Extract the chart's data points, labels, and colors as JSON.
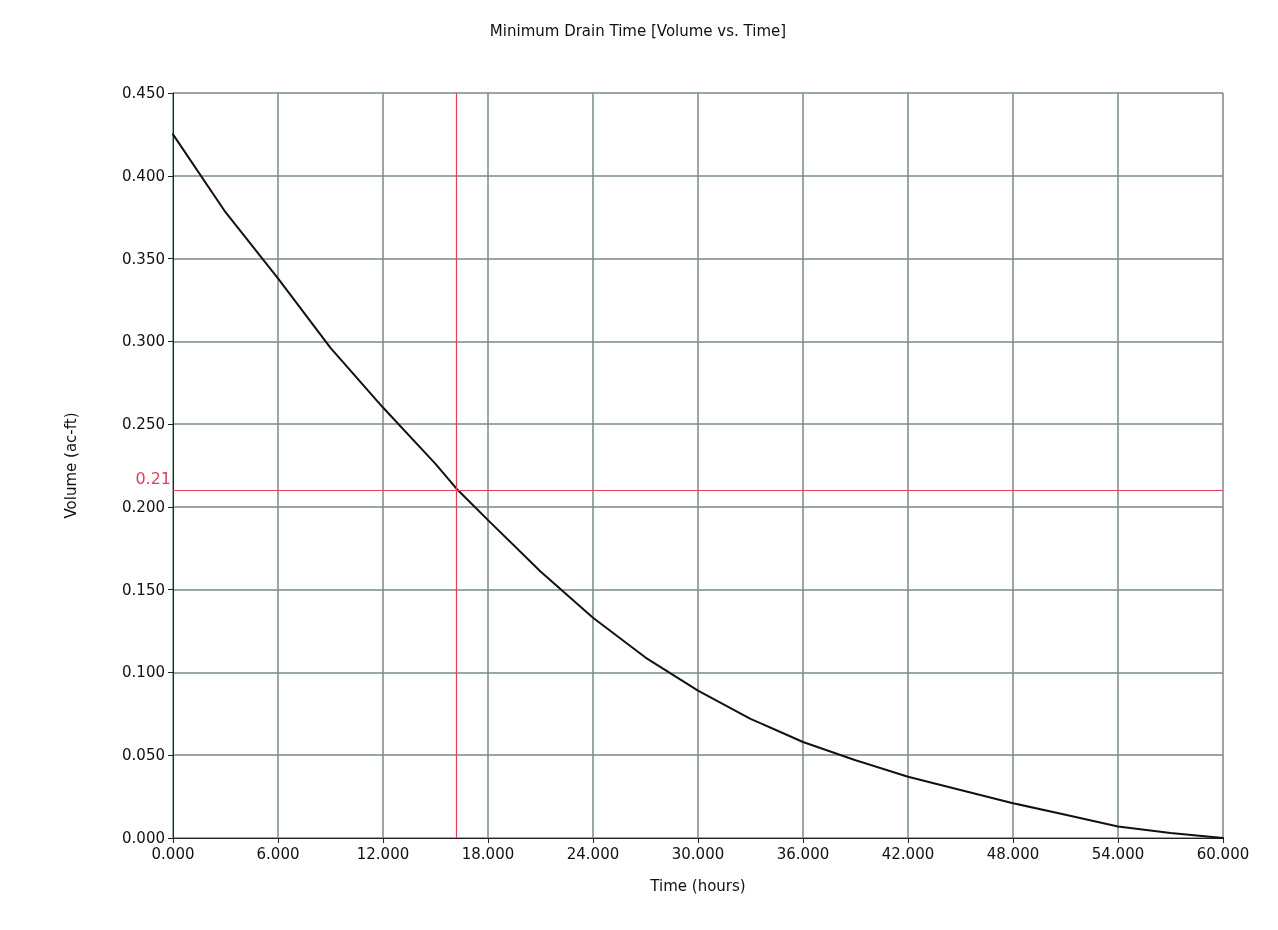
{
  "chart_data": {
    "type": "line",
    "title": "Minimum Drain Time [Volume vs. Time]",
    "xlabel": "Time (hours)",
    "ylabel": "Volume (ac-ft)",
    "x": [
      0,
      3,
      6,
      9,
      12,
      15,
      16.2,
      18,
      21,
      24,
      27,
      30,
      33,
      36,
      39,
      42,
      45,
      48,
      51,
      54,
      57,
      60
    ],
    "series": [
      {
        "color": "#111111",
        "values": [
          0.425,
          0.378,
          0.338,
          0.296,
          0.26,
          0.226,
          0.211,
          0.192,
          0.161,
          0.133,
          0.109,
          0.089,
          0.072,
          0.058,
          0.047,
          0.037,
          0.029,
          0.021,
          0.014,
          0.007,
          0.003,
          0.0
        ]
      }
    ],
    "xlim": [
      0,
      60
    ],
    "ylim": [
      0,
      0.45
    ],
    "xticks": [
      {
        "value": 0,
        "label": "0.000"
      },
      {
        "value": 6,
        "label": "6.000"
      },
      {
        "value": 12,
        "label": "12.000"
      },
      {
        "value": 18,
        "label": "18.000"
      },
      {
        "value": 24,
        "label": "24.000"
      },
      {
        "value": 30,
        "label": "30.000"
      },
      {
        "value": 36,
        "label": "36.000"
      },
      {
        "value": 42,
        "label": "42.000"
      },
      {
        "value": 48,
        "label": "48.000"
      },
      {
        "value": 54,
        "label": "54.000"
      },
      {
        "value": 60,
        "label": "60.000"
      }
    ],
    "yticks": [
      {
        "value": 0,
        "label": "0.000"
      },
      {
        "value": 0.05,
        "label": "0.050"
      },
      {
        "value": 0.1,
        "label": "0.100"
      },
      {
        "value": 0.15,
        "label": "0.150"
      },
      {
        "value": 0.2,
        "label": "0.200"
      },
      {
        "value": 0.25,
        "label": "0.250"
      },
      {
        "value": 0.3,
        "label": "0.300"
      },
      {
        "value": 0.35,
        "label": "0.350"
      },
      {
        "value": 0.4,
        "label": "0.400"
      },
      {
        "value": 0.45,
        "label": "0.450"
      }
    ],
    "ref_lines": [
      {
        "axis": "y",
        "value": 0.21,
        "label": "0.21",
        "color": "#e0405a"
      },
      {
        "axis": "x",
        "value": 16.2,
        "label": null,
        "color": "#e0405a"
      }
    ],
    "grid": true,
    "marker": "none",
    "line_style": "solid"
  }
}
